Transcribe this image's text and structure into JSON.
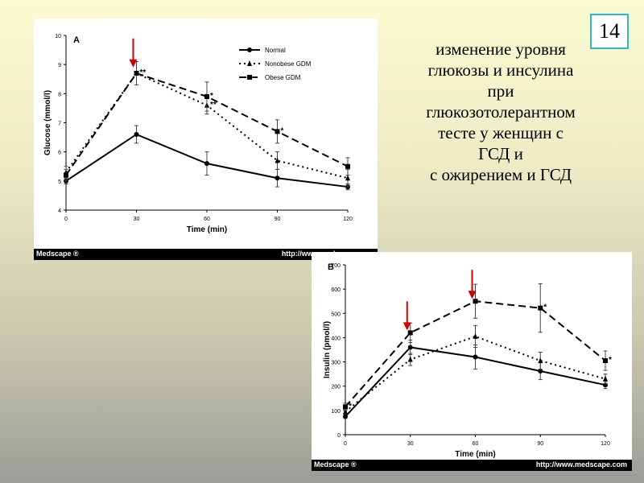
{
  "slide": {
    "number": "14"
  },
  "caption": {
    "lines": [
      "изменение уровня",
      "глюкозы и инсулина",
      "при",
      "глюкозотолерантном",
      "тесте у женщин с",
      "ГСД и",
      "с ожирением и ГСД"
    ]
  },
  "colors": {
    "arrow": "#cc0000",
    "line": "#000000",
    "slide_number_border": "#2fb8c8"
  },
  "figure_a": {
    "source_left": "Medscape ®",
    "source_right": "http://www.medscape.com"
  },
  "figure_b": {
    "source_left": "Medscape ®",
    "source_right": "http://www.medscape.com"
  },
  "chart_data": [
    {
      "type": "line",
      "panel_label": "A",
      "title": "",
      "xlabel": "Time (min)",
      "ylabel": "Glucose (mmol/l)",
      "x": [
        0,
        30,
        60,
        90,
        120
      ],
      "xticks": [
        "0",
        "30",
        "60",
        "90",
        "120"
      ],
      "yticks": [
        "4",
        "5",
        "6",
        "7",
        "8",
        "9",
        "10"
      ],
      "xlim": [
        0,
        120
      ],
      "ylim": [
        4,
        10
      ],
      "legend_position": "top-right",
      "series": [
        {
          "name": "Normal",
          "style": "solid",
          "marker": "circle",
          "values": [
            5.0,
            6.6,
            5.6,
            5.1,
            4.8
          ],
          "errors": [
            0.1,
            0.3,
            0.4,
            0.3,
            0.1
          ]
        },
        {
          "name": "Nonobese GDM",
          "style": "dotted",
          "marker": "triangle",
          "values": [
            5.3,
            8.7,
            7.6,
            5.7,
            5.1
          ],
          "errors": [
            0.2,
            0.4,
            0.3,
            0.3,
            0.3
          ]
        },
        {
          "name": "Obese GDM",
          "style": "dashed",
          "marker": "square",
          "values": [
            5.2,
            8.7,
            7.9,
            6.7,
            5.5
          ],
          "errors": [
            0.2,
            0.4,
            0.5,
            0.4,
            0.3
          ]
        }
      ],
      "annotations": [
        {
          "x": 30,
          "y": 8.7,
          "text": "**"
        },
        {
          "x": 60,
          "y": 7.9,
          "text": "*"
        },
        {
          "x": 60,
          "y": 7.6,
          "text": "**"
        },
        {
          "x": 90,
          "y": 6.7,
          "text": "*"
        }
      ],
      "arrows": [
        {
          "x": 30,
          "y": 8.9
        }
      ]
    },
    {
      "type": "line",
      "panel_label": "B",
      "title": "",
      "xlabel": "Time (min)",
      "ylabel": "Insulin (pmol/l)",
      "x": [
        0,
        30,
        60,
        90,
        120
      ],
      "xticks": [
        "0",
        "30",
        "60",
        "90",
        "120"
      ],
      "yticks": [
        "0",
        "100",
        "200",
        "300",
        "400",
        "500",
        "600",
        "700"
      ],
      "xlim": [
        0,
        120
      ],
      "ylim": [
        0,
        700
      ],
      "series": [
        {
          "name": "Normal",
          "style": "solid",
          "marker": "circle",
          "values": [
            75,
            360,
            320,
            262,
            205
          ],
          "errors": [
            8,
            30,
            50,
            35,
            15
          ]
        },
        {
          "name": "Nonobese GDM",
          "style": "dotted",
          "marker": "triangle",
          "values": [
            95,
            310,
            405,
            305,
            230
          ],
          "errors": [
            10,
            25,
            45,
            35,
            20
          ]
        },
        {
          "name": "Obese GDM",
          "style": "dashed",
          "marker": "square",
          "values": [
            115,
            420,
            550,
            522,
            305
          ],
          "errors": [
            15,
            40,
            70,
            100,
            40
          ]
        }
      ],
      "annotations": [
        {
          "x": 0,
          "y": 115,
          "text": "*"
        },
        {
          "x": 90,
          "y": 522,
          "text": "*"
        },
        {
          "x": 120,
          "y": 305,
          "text": "*"
        }
      ],
      "arrows": [
        {
          "x": 30,
          "y": 430
        },
        {
          "x": 60,
          "y": 560
        }
      ]
    }
  ]
}
